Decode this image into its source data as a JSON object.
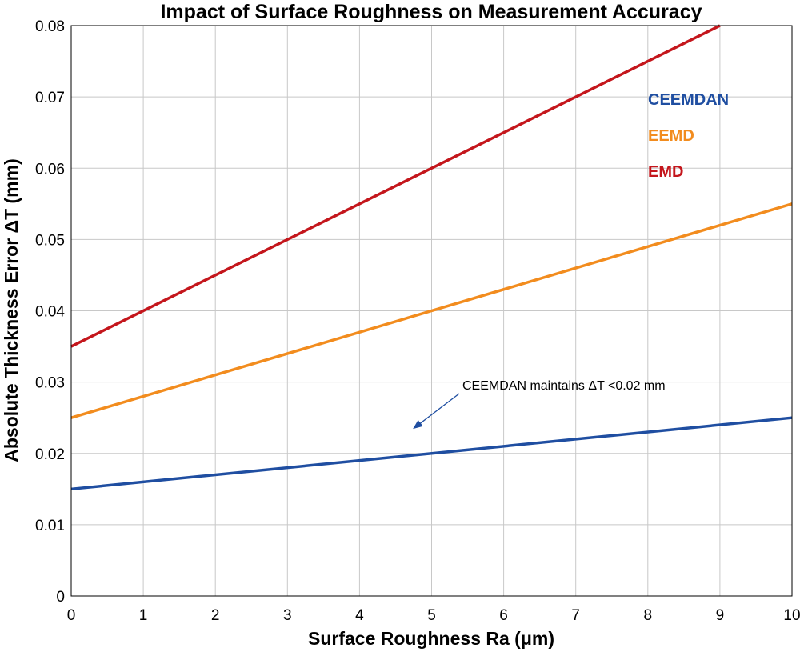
{
  "chart_data": {
    "type": "line",
    "title": "Impact of Surface Roughness on Measurement Accuracy",
    "xlabel": "Surface Roughness Ra (μm)",
    "ylabel": "Absolute Thickness Error ΔT (mm)",
    "xlim": [
      0,
      10
    ],
    "ylim": [
      0,
      0.08
    ],
    "grid": true,
    "x_ticks": [
      "0",
      "1",
      "2",
      "3",
      "4",
      "5",
      "6",
      "7",
      "8",
      "9",
      "10"
    ],
    "y_ticks": [
      "0",
      "0.01",
      "0.02",
      "0.03",
      "0.04",
      "0.05",
      "0.06",
      "0.07",
      "0.08"
    ],
    "legend_placement": "top-right",
    "series": [
      {
        "name": "CEEMDAN",
        "color": "#1f4ea1",
        "x": [
          0,
          10
        ],
        "values": [
          0.015,
          0.025
        ]
      },
      {
        "name": "EEMD",
        "color": "#f28c1e",
        "x": [
          0,
          10
        ],
        "values": [
          0.025,
          0.055
        ]
      },
      {
        "name": "EMD",
        "color": "#c4161c",
        "x": [
          0,
          9
        ],
        "values": [
          0.035,
          0.08
        ]
      }
    ],
    "annotations": [
      {
        "text": "CEEMDAN maintains ΔT <0.02 mm",
        "target_x": 4.75,
        "target_y": 0.0235
      }
    ]
  }
}
